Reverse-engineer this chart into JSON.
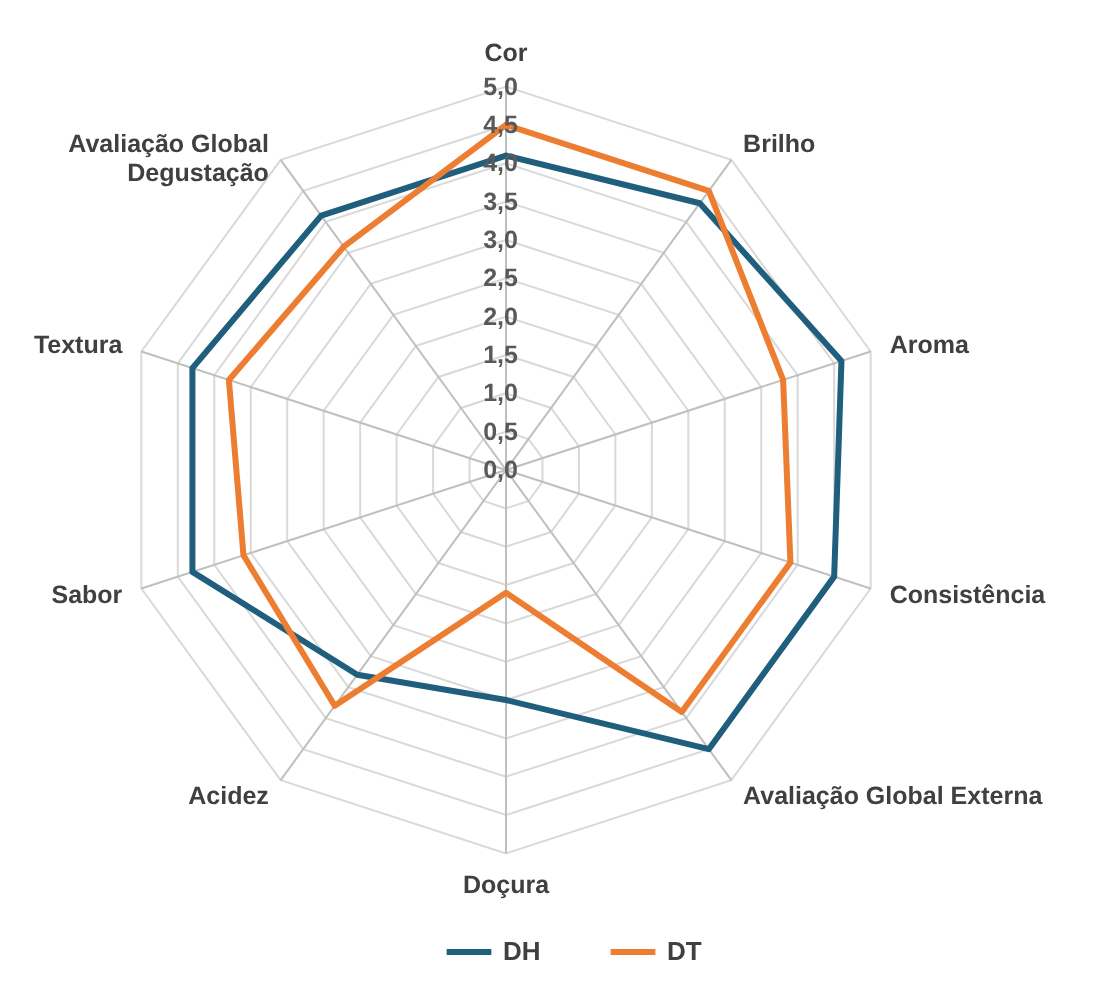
{
  "chart_data": {
    "type": "radar",
    "categories": [
      "Cor",
      "Brilho",
      "Aroma",
      "Consistência",
      "Avaliação Global Externa",
      "Doçura",
      "Acidez",
      "Sabor",
      "Textura",
      "Avaliação Global Degustação"
    ],
    "series": [
      {
        "name": "DH",
        "color": "#1f5f7d",
        "values": [
          4.1,
          4.3,
          4.6,
          4.5,
          4.5,
          3.0,
          3.3,
          4.3,
          4.3,
          4.1
        ]
      },
      {
        "name": "DT",
        "color": "#ed7d31",
        "values": [
          4.5,
          4.5,
          3.8,
          3.9,
          3.9,
          1.6,
          3.8,
          3.6,
          3.8,
          3.6
        ]
      }
    ],
    "ylim": [
      0,
      5
    ],
    "yticks": [
      {
        "value": 0,
        "label": "0,0"
      },
      {
        "value": 0.5,
        "label": "0,5"
      },
      {
        "value": 1,
        "label": "1,0"
      },
      {
        "value": 1.5,
        "label": "1,5"
      },
      {
        "value": 2,
        "label": "2,0"
      },
      {
        "value": 2.5,
        "label": "2,5"
      },
      {
        "value": 3,
        "label": "3,0"
      },
      {
        "value": 3.5,
        "label": "3,5"
      },
      {
        "value": 4,
        "label": "4,0"
      },
      {
        "value": 4.5,
        "label": "4,5"
      },
      {
        "value": 5,
        "label": "5,0"
      }
    ],
    "grid": true,
    "legend": "bottom"
  }
}
